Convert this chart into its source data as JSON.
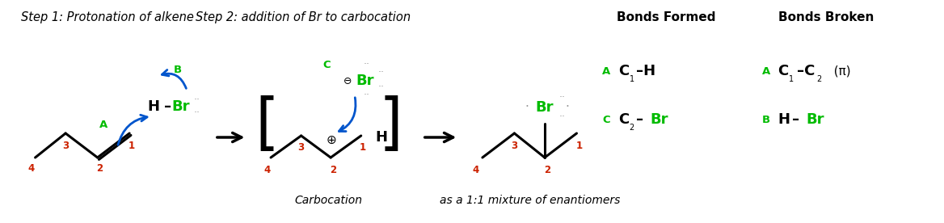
{
  "bg_color": "#ffffff",
  "black": "#000000",
  "green": "#00bb00",
  "red": "#cc2200",
  "blue": "#0055cc",
  "gray": "#999999",
  "step1_label": "Step 1: Protonation of alkene",
  "step2_label": "Step 2: addition of Br to carbocation",
  "bonds_formed": "Bonds Formed",
  "bonds_broken": "Bonds Broken",
  "carbocation_label": "Carbocation",
  "mixture_label": "as a 1:1 mixture of enantiomers"
}
